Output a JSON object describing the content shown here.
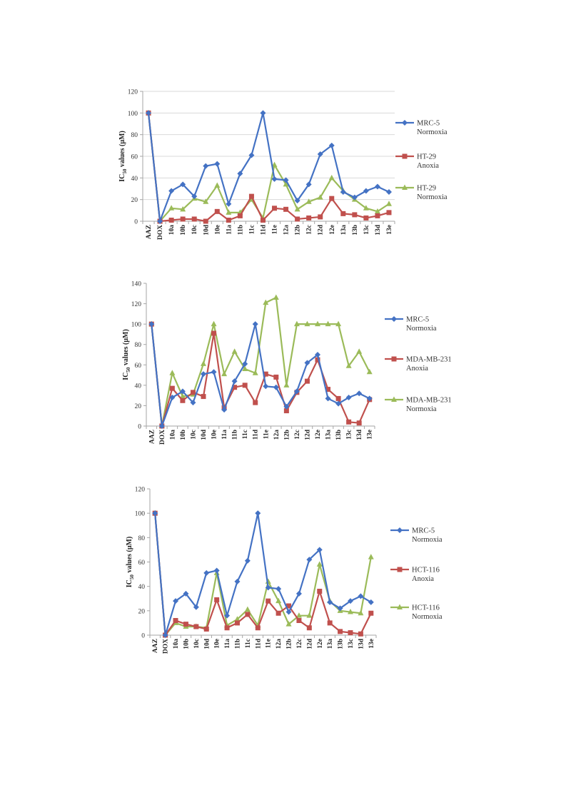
{
  "colors": {
    "blue": "#4472C4",
    "red": "#C0504D",
    "green": "#9BBB59",
    "grid": "#D9D9D9",
    "axis": "#A6A6A6"
  },
  "chart_data": [
    {
      "type": "line",
      "ylabel_main": "IC",
      "ylabel_sub": "50",
      "ylabel_rest": " values (μM)",
      "ylim": [
        0,
        120
      ],
      "yticks": [
        0,
        20,
        40,
        60,
        80,
        100,
        120
      ],
      "grid": true,
      "legend_position": "right",
      "categories": [
        "AAZ",
        "DOX",
        "10a",
        "10b",
        "10c",
        "10d",
        "10e",
        "11a",
        "11b",
        "11c",
        "11d",
        "11e",
        "12a",
        "12b",
        "12c",
        "12d",
        "12e",
        "13a",
        "13b",
        "13c",
        "13d",
        "13e"
      ],
      "series": [
        {
          "name_line1": "MRC-5",
          "name_line2": "Normoxia",
          "color": "blue",
          "marker": "diamond",
          "values": [
            100,
            0,
            28,
            34,
            23,
            51,
            53,
            16,
            44,
            61,
            100,
            39,
            38,
            19,
            34,
            62,
            70,
            27,
            22,
            28,
            32,
            27
          ]
        },
        {
          "name_line1": "HT-29",
          "name_line2": "Anoxia",
          "color": "red",
          "marker": "square",
          "values": [
            100,
            0,
            1,
            2,
            2,
            0,
            9,
            1,
            5,
            23,
            1,
            12,
            11,
            2,
            3,
            4,
            21,
            7,
            6,
            3,
            5,
            8
          ]
        },
        {
          "name_line1": "HT-29",
          "name_line2": "Normoxia",
          "color": "green",
          "marker": "triangle",
          "values": [
            100,
            0,
            12,
            11,
            21,
            18,
            33,
            8,
            8,
            20,
            3,
            52,
            34,
            11,
            18,
            22,
            40,
            28,
            20,
            12,
            9,
            16
          ]
        }
      ]
    },
    {
      "type": "line",
      "ylabel_main": "IC",
      "ylabel_sub": "50",
      "ylabel_rest": " values (μM)",
      "ylim": [
        0,
        140
      ],
      "yticks": [
        0,
        20,
        40,
        60,
        80,
        100,
        120,
        140
      ],
      "grid": false,
      "legend_position": "right",
      "categories": [
        "AAZ",
        "DOX",
        "10a",
        "10b",
        "10c",
        "10d",
        "10e",
        "11a",
        "11b",
        "11c",
        "11d",
        "11e",
        "12a",
        "12b",
        "12c",
        "12d",
        "12e",
        "13a",
        "13b",
        "13c",
        "13d",
        "13e"
      ],
      "series": [
        {
          "name_line1": "MRC-5",
          "name_line2": "Normoxia",
          "color": "blue",
          "marker": "diamond",
          "values": [
            100,
            0,
            28,
            34,
            23,
            51,
            53,
            16,
            44,
            61,
            100,
            39,
            38,
            19,
            34,
            62,
            70,
            27,
            22,
            28,
            32,
            27
          ]
        },
        {
          "name_line1": "MDA-MB-231",
          "name_line2": "Anoxia",
          "color": "red",
          "marker": "square",
          "values": [
            100,
            0,
            37,
            25,
            33,
            29,
            91,
            18,
            38,
            40,
            23,
            51,
            48,
            15,
            33,
            44,
            65,
            36,
            27,
            4,
            3,
            26
          ]
        },
        {
          "name_line1": "MDA-MB-231",
          "name_line2": "Normoxia",
          "color": "green",
          "marker": "triangle",
          "values": [
            100,
            0,
            52,
            29,
            31,
            61,
            100,
            51,
            73,
            56,
            52,
            121,
            126,
            40,
            100,
            100,
            100,
            100,
            100,
            59,
            73,
            53
          ]
        }
      ]
    },
    {
      "type": "line",
      "ylabel_main": "IC",
      "ylabel_sub": "50",
      "ylabel_rest": " values (μM)",
      "ylim": [
        0,
        120
      ],
      "yticks": [
        0,
        20,
        40,
        60,
        80,
        100,
        120
      ],
      "grid": false,
      "legend_position": "right",
      "categories": [
        "AAZ",
        "DOX",
        "10a",
        "10b",
        "10c",
        "10d",
        "10e",
        "11a",
        "11b",
        "11c",
        "11d",
        "11e",
        "12a",
        "12b",
        "12c",
        "12d",
        "12e",
        "13a",
        "13b",
        "13c",
        "13d",
        "13e"
      ],
      "series": [
        {
          "name_line1": "MRC-5",
          "name_line2": "Normoxia",
          "color": "blue",
          "marker": "diamond",
          "values": [
            100,
            0,
            28,
            34,
            23,
            51,
            53,
            16,
            44,
            61,
            100,
            39,
            38,
            19,
            34,
            62,
            70,
            27,
            22,
            28,
            32,
            27
          ]
        },
        {
          "name_line1": "HCT-116",
          "name_line2": "Anoxia",
          "color": "red",
          "marker": "square",
          "values": [
            100,
            0,
            12,
            9,
            7,
            5,
            29,
            6,
            10,
            17,
            6,
            28,
            18,
            24,
            12,
            6,
            36,
            10,
            3,
            2,
            1,
            18
          ]
        },
        {
          "name_line1": "HCT-116",
          "name_line2": "Normoxia",
          "color": "green",
          "marker": "triangle",
          "values": [
            100,
            0,
            10,
            7,
            7,
            6,
            51,
            8,
            13,
            21,
            8,
            44,
            28,
            9,
            16,
            16,
            58,
            28,
            20,
            19,
            18,
            64
          ]
        }
      ]
    }
  ]
}
